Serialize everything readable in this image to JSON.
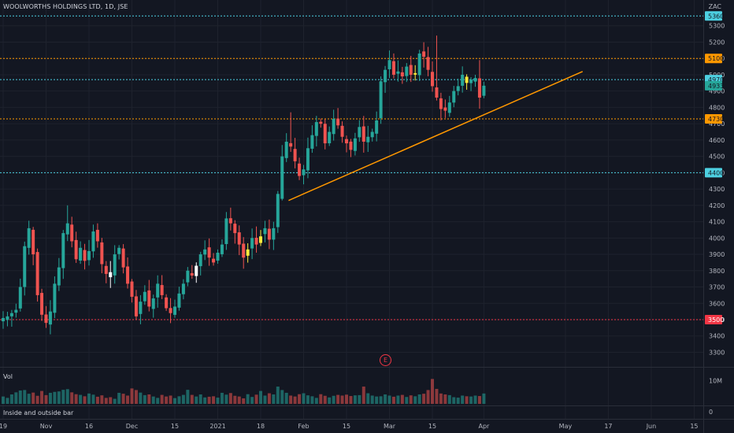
{
  "header": {
    "symbol": "WOOLWORTHS HOLDINGS LTD, 1D, JSE",
    "currency": "ZAC"
  },
  "panes": {
    "volume_label": "Vol",
    "indicator_label": "Inside and outside bar",
    "earnings_badge": "E"
  },
  "colors": {
    "background": "#131722",
    "up": "#26a69a",
    "down": "#ef5350",
    "inside_bar": "#ffeb3b",
    "outside_bar": "#ffffff",
    "trendline": "#ff9800",
    "support_blue": "#4dd0e1",
    "resistance_orange": "#ff9800",
    "low_red": "#f23645"
  },
  "chart_data": {
    "type": "candlestick",
    "ylim": [
      3230,
      5400
    ],
    "yticks": [
      3300,
      3400,
      3500,
      3600,
      3700,
      3800,
      3900,
      4000,
      4100,
      4200,
      4300,
      4400,
      4500,
      4600,
      4700,
      4800,
      4900,
      5000,
      5100,
      5200,
      5300
    ],
    "xticks": [
      {
        "label": "19",
        "bar": 0
      },
      {
        "label": "Nov",
        "bar": 10
      },
      {
        "label": "16",
        "bar": 20
      },
      {
        "label": "Dec",
        "bar": 30
      },
      {
        "label": "15",
        "bar": 40
      },
      {
        "label": "2021",
        "bar": 50
      },
      {
        "label": "18",
        "bar": 60
      },
      {
        "label": "Feb",
        "bar": 70
      },
      {
        "label": "15",
        "bar": 80
      },
      {
        "label": "Mar",
        "bar": 90
      },
      {
        "label": "15",
        "bar": 100
      },
      {
        "label": "Apr",
        "bar": 112
      },
      {
        "label": "May",
        "bar": 131
      },
      {
        "label": "17",
        "bar": 141
      },
      {
        "label": "Jun",
        "bar": 151
      },
      {
        "label": "15",
        "bar": 161
      }
    ],
    "bars_per_x": 5.45,
    "levels": [
      {
        "value": 5360,
        "label": "5360",
        "style": "blue"
      },
      {
        "value": 5100,
        "label": "5100",
        "style": "orange"
      },
      {
        "value": 4970,
        "label": "4970",
        "style": "blue"
      },
      {
        "value": 4933,
        "label": "4933",
        "style": "last"
      },
      {
        "value": 4730,
        "label": "4730",
        "style": "orange"
      },
      {
        "value": 4400,
        "label": "4400",
        "style": "blue"
      },
      {
        "value": 3500,
        "label": "3500",
        "style": "red"
      }
    ],
    "trendline": {
      "from": {
        "bar": 66.5,
        "value": 4230
      },
      "to": {
        "bar": 135,
        "value": 5020
      }
    },
    "volume_axis": [
      {
        "label": "10M",
        "value": 10
      },
      {
        "label": "0",
        "value": 0
      }
    ],
    "volume_max": 14,
    "closes": [
      3510,
      3520,
      3540,
      3560,
      3700,
      3950,
      4060,
      3900,
      3650,
      3530,
      3480,
      3550,
      3720,
      3820,
      4030,
      4090,
      3980,
      3870,
      3940,
      3860,
      3920,
      4040,
      3980,
      3840,
      3780,
      3760,
      3900,
      3940,
      3820,
      3720,
      3640,
      3520,
      3610,
      3670,
      3580,
      3630,
      3720,
      3650,
      3570,
      3540,
      3580,
      3660,
      3720,
      3800,
      3770,
      3830,
      3900,
      3930,
      3880,
      3850,
      3910,
      3960,
      4120,
      4090,
      4030,
      3960,
      3880,
      3930,
      4000,
      3960,
      4010,
      4060,
      3990,
      4060,
      4270,
      4500,
      4590,
      4560,
      4470,
      4380,
      4420,
      4550,
      4630,
      4710,
      4700,
      4580,
      4650,
      4730,
      4690,
      4620,
      4580,
      4540,
      4610,
      4680,
      4590,
      4620,
      4650,
      4720,
      4960,
      5030,
      5090,
      5000,
      5020,
      4990,
      5050,
      5000,
      5010,
      5130,
      5110,
      5030,
      4930,
      4860,
      4790,
      4780,
      4830,
      4900,
      4930,
      5000,
      4950,
      4970,
      4980,
      4860,
      4933
    ],
    "volumes": [
      3.2,
      2.6,
      4.1,
      5.0,
      5.8,
      6.0,
      4.4,
      4.9,
      3.5,
      5.6,
      3.8,
      4.8,
      5.2,
      5.4,
      6.1,
      6.4,
      5.0,
      4.2,
      3.9,
      3.3,
      4.5,
      4.0,
      3.1,
      3.7,
      2.6,
      2.9,
      2.2,
      4.8,
      4.4,
      3.6,
      6.7,
      6.0,
      4.9,
      3.8,
      4.1,
      3.2,
      2.6,
      3.9,
      3.2,
      3.6,
      2.5,
      3.3,
      3.9,
      6.1,
      3.9,
      3.2,
      4.1,
      2.8,
      3.1,
      3.3,
      2.7,
      4.8,
      4.0,
      4.7,
      3.5,
      3.2,
      2.4,
      4.2,
      3.0,
      4.0,
      5.6,
      3.6,
      4.6,
      4.1,
      7.5,
      6.0,
      4.8,
      3.6,
      3.2,
      4.2,
      4.6,
      3.7,
      3.3,
      2.6,
      4.2,
      3.5,
      2.8,
      3.5,
      3.9,
      3.6,
      4.0,
      3.4,
      3.7,
      3.8,
      7.5,
      4.6,
      3.6,
      3.2,
      3.3,
      4.1,
      3.6,
      3.1,
      3.6,
      3.9,
      3.0,
      3.7,
      3.3,
      4.1,
      4.4,
      6.0,
      10.8,
      6.5,
      4.5,
      4.1,
      3.8,
      2.9,
      2.7,
      3.6,
      3.3,
      3.2,
      3.6,
      3.4,
      4.5
    ]
  },
  "axis_labels": {
    "last_value": "4933"
  }
}
